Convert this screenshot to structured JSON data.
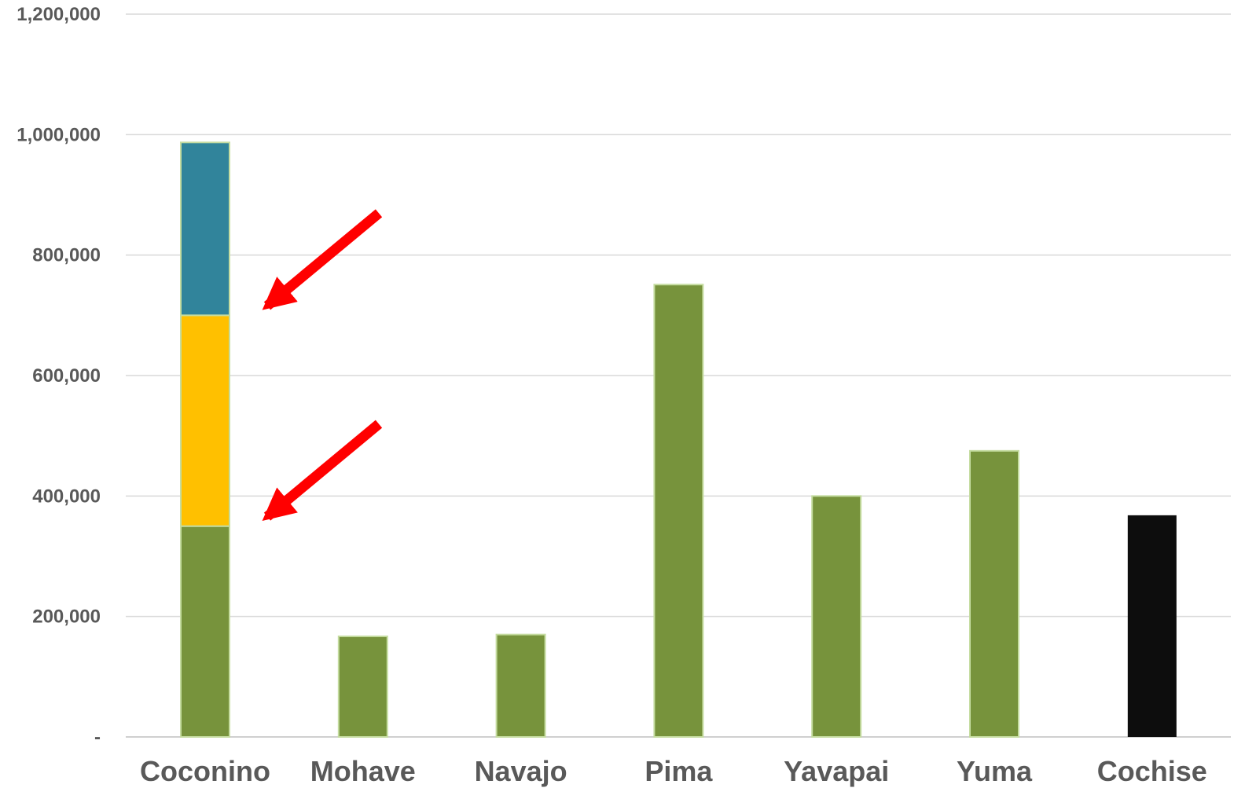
{
  "chart_data": {
    "type": "bar",
    "stacked": true,
    "categories": [
      "Coconino",
      "Mohave",
      "Navajo",
      "Pima",
      "Yavapai",
      "Yuma",
      "Cochise"
    ],
    "ylim": [
      0,
      1200000
    ],
    "yticks": [
      0,
      200000,
      400000,
      600000,
      800000,
      1000000,
      1200000
    ],
    "ytick_labels": [
      "-",
      "200,000",
      "400,000",
      "600,000",
      "800,000",
      "1,000,000",
      "1,200,000"
    ],
    "grid": true,
    "legend": "none",
    "bars": [
      {
        "category": "Coconino",
        "segments": [
          {
            "value": 350000,
            "color": "#77933c"
          },
          {
            "value": 350000,
            "color": "#ffc000"
          },
          {
            "value": 287000,
            "color": "#31849b"
          }
        ]
      },
      {
        "category": "Mohave",
        "segments": [
          {
            "value": 167000,
            "color": "#77933c"
          }
        ]
      },
      {
        "category": "Navajo",
        "segments": [
          {
            "value": 170000,
            "color": "#77933c"
          }
        ]
      },
      {
        "category": "Pima",
        "segments": [
          {
            "value": 751000,
            "color": "#77933c"
          }
        ]
      },
      {
        "category": "Yavapai",
        "segments": [
          {
            "value": 400000,
            "color": "#77933c"
          }
        ]
      },
      {
        "category": "Yuma",
        "segments": [
          {
            "value": 475000,
            "color": "#77933c"
          }
        ]
      },
      {
        "category": "Cochise",
        "segments": [
          {
            "value": 368000,
            "color": "#0d0d0d"
          }
        ]
      }
    ],
    "annotations": [
      {
        "type": "arrow",
        "color": "#ff0000",
        "points_to": {
          "category": "Coconino",
          "value": 700000
        }
      },
      {
        "type": "arrow",
        "color": "#ff0000",
        "points_to": {
          "category": "Coconino",
          "value": 350000
        }
      }
    ]
  },
  "colors": {
    "tick_text": "#595959",
    "grid": "#d9d9d9",
    "bar_outline": "#c5dca0"
  }
}
